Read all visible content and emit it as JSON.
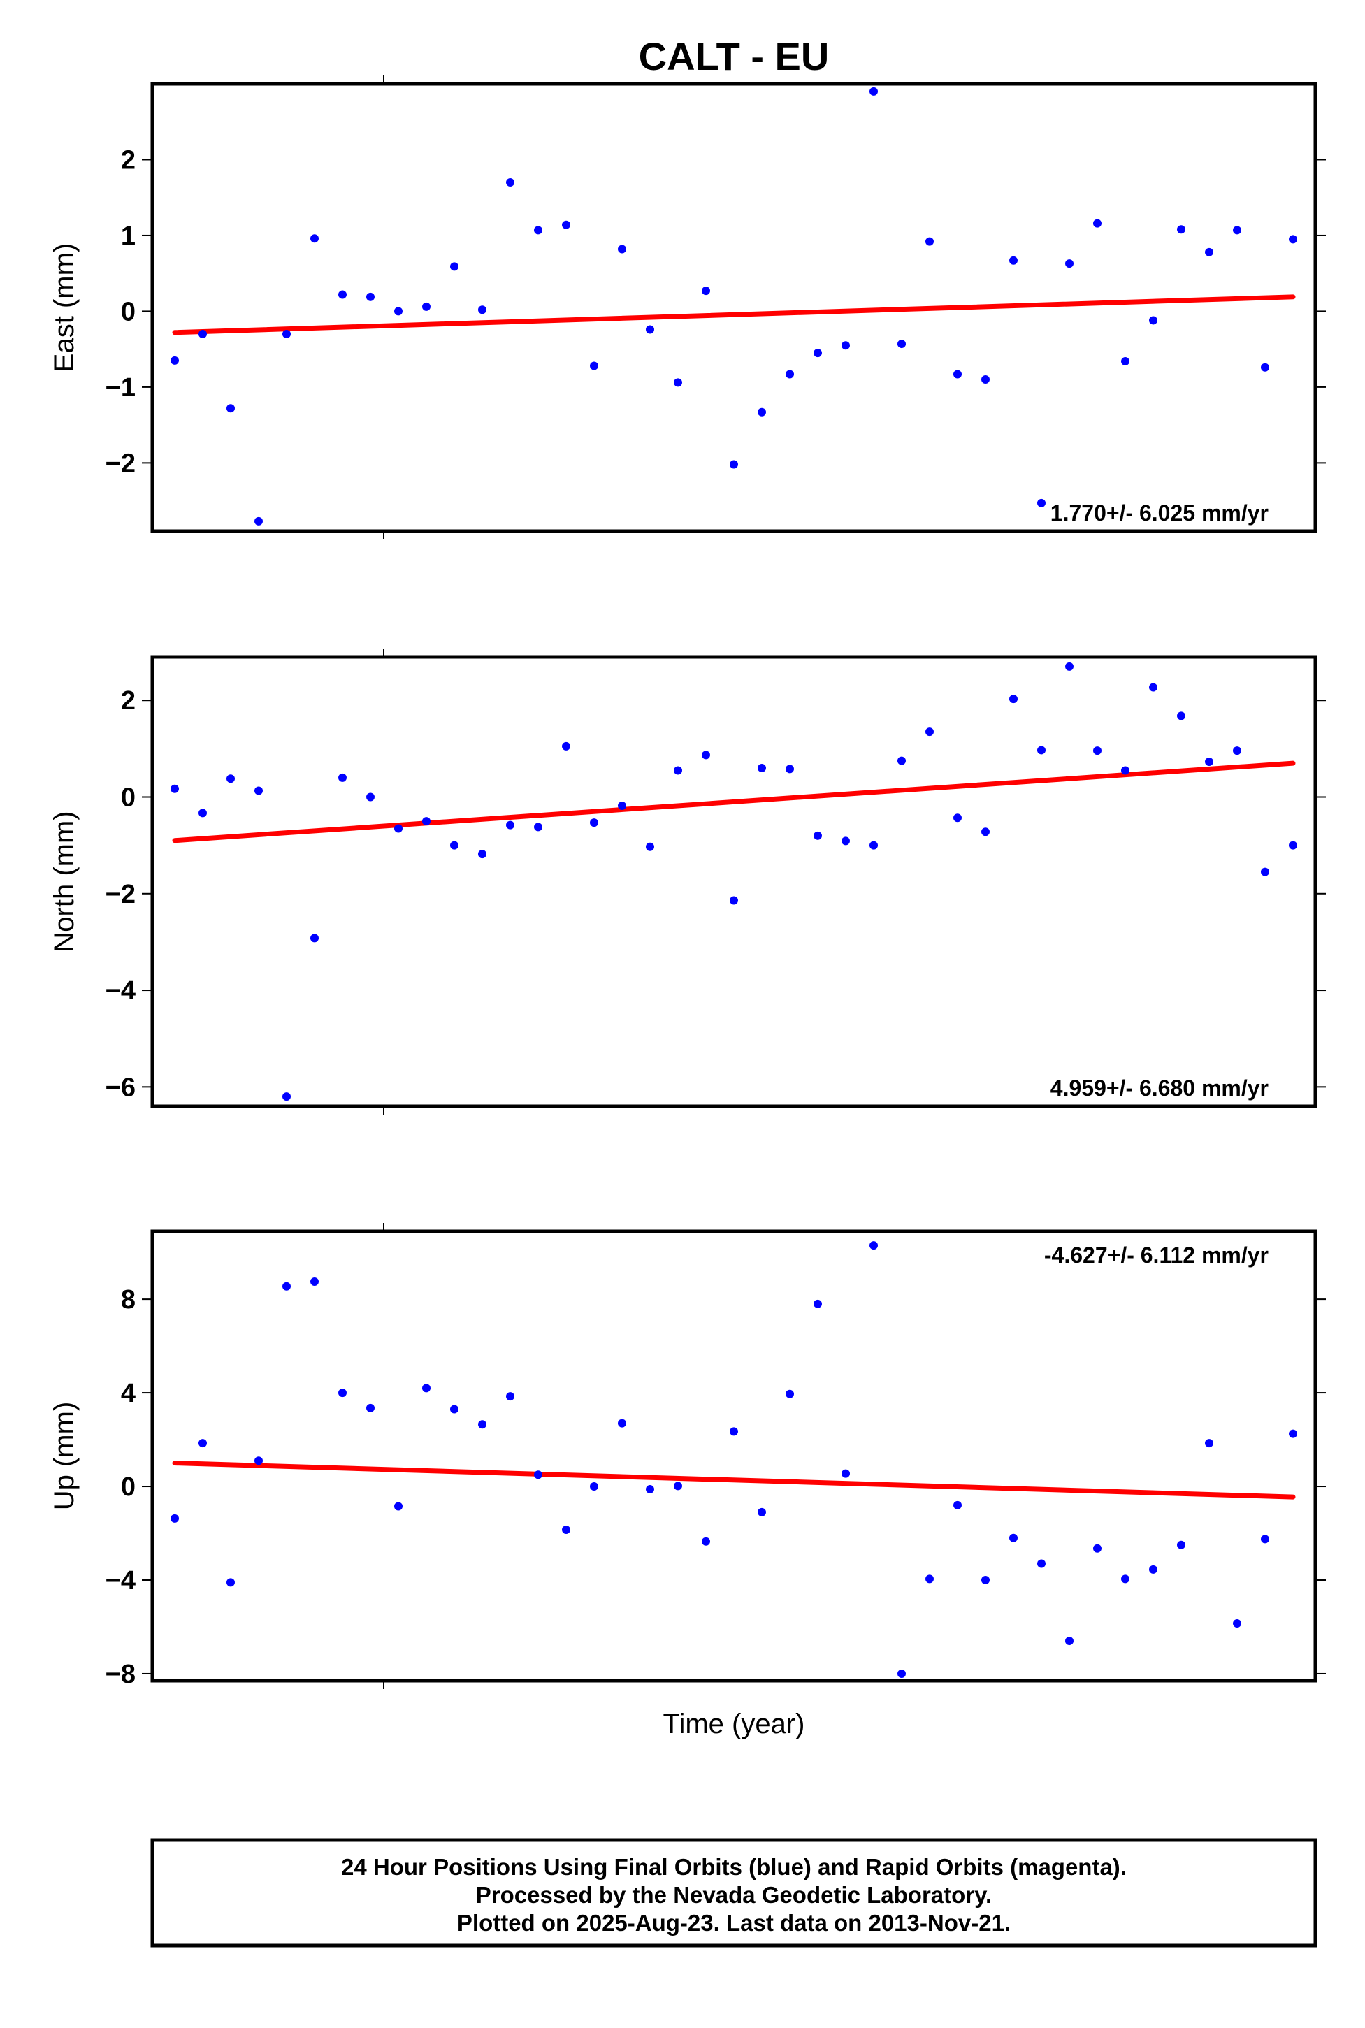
{
  "title": "CALT - EU",
  "xlabel": "Time (year)",
  "colors": {
    "points": "#0000ff",
    "trend": "#ff0000",
    "frame": "#000000"
  },
  "footer": {
    "line1": "24 Hour Positions Using Final Orbits (blue) and Rapid Orbits (magenta).",
    "line2": "Processed by the Nevada Geodetic Laboratory.",
    "line3": "Plotted on 2025-Aug-23. Last data on 2013-Nov-21."
  },
  "chart_data": [
    {
      "type": "scatter",
      "ylabel": "East (mm)",
      "ylim": [
        -2.9,
        3.0
      ],
      "yticks": [
        2,
        1,
        0,
        -1,
        -2
      ],
      "ytick_labels": [
        "2",
        "1",
        "0",
        "−1",
        "−2"
      ],
      "rate": "1.770+/- 6.025 mm/yr",
      "rate_position": "bottom-right",
      "trend": [
        -0.28,
        0.19
      ],
      "points": [
        -0.65,
        -0.3,
        -1.28,
        -2.77,
        -0.3,
        0.96,
        0.22,
        0.19,
        0.0,
        0.06,
        0.59,
        0.02,
        1.7,
        1.07,
        1.14,
        -0.72,
        0.82,
        -0.24,
        -0.94,
        0.27,
        -2.02,
        -1.33,
        -0.83,
        -0.55,
        -0.45,
        2.9,
        -0.43,
        0.92,
        -0.83,
        -0.9,
        0.67,
        -2.53,
        0.63,
        1.16,
        -0.66,
        -0.12,
        1.08,
        0.78,
        1.07,
        -0.74,
        0.95
      ]
    },
    {
      "type": "scatter",
      "ylabel": "North (mm)",
      "ylim": [
        -6.4,
        2.9
      ],
      "yticks": [
        2,
        0,
        -2,
        -4,
        -6
      ],
      "ytick_labels": [
        "2",
        "0",
        "−2",
        "−4",
        "−6"
      ],
      "rate": "4.959+/- 6.680 mm/yr",
      "rate_position": "bottom-right",
      "trend": [
        -0.9,
        0.7
      ],
      "points": [
        0.17,
        -0.33,
        0.38,
        0.13,
        -6.2,
        -2.92,
        0.4,
        0.0,
        -0.65,
        -0.5,
        -1.0,
        -1.18,
        -0.58,
        -0.62,
        1.05,
        -0.53,
        -0.18,
        -1.03,
        0.55,
        0.87,
        -2.14,
        0.6,
        0.58,
        -0.8,
        -0.91,
        -1.0,
        0.75,
        1.35,
        -0.43,
        -0.72,
        2.03,
        0.97,
        2.7,
        0.96,
        0.55,
        2.27,
        1.68,
        0.73,
        0.96,
        -1.55,
        -1.0
      ]
    },
    {
      "type": "scatter",
      "ylabel": "Up (mm)",
      "ylim": [
        -8.3,
        10.9
      ],
      "yticks": [
        8,
        4,
        0,
        -4,
        -8
      ],
      "ytick_labels": [
        "8",
        "4",
        "0",
        "−4",
        "−8"
      ],
      "rate": "-4.627+/- 6.112 mm/yr",
      "rate_position": "top-right",
      "trend": [
        1.0,
        -0.45
      ],
      "points": [
        -1.37,
        1.85,
        -4.1,
        1.1,
        8.55,
        8.75,
        4.0,
        3.35,
        -0.85,
        4.2,
        3.3,
        2.65,
        3.85,
        0.5,
        -1.85,
        0.0,
        2.7,
        -0.12,
        0.02,
        -2.35,
        2.35,
        -1.1,
        3.95,
        7.8,
        0.55,
        10.3,
        -8.0,
        -3.95,
        -0.8,
        -4.0,
        -2.2,
        -3.3,
        -6.6,
        -2.65,
        -3.95,
        -3.55,
        -2.5,
        1.85,
        -5.85,
        -2.25,
        2.25
      ]
    }
  ]
}
